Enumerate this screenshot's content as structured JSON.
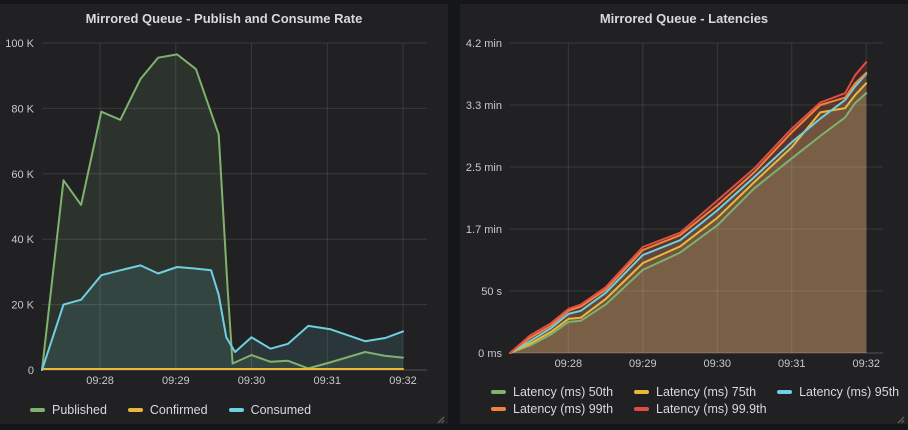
{
  "colors": {
    "page_bg": "#151619",
    "panel_bg": "#212124",
    "grid": "rgba(255,255,255,0.11)",
    "axis_line": "rgba(255,255,255,0.22)",
    "tick_text": "#c8c9ca",
    "title_text": "#d8d9da",
    "legend_text": "#d8d9da",
    "grip": "#5a5a5a"
  },
  "chart_data": [
    {
      "type": "area",
      "title": "Mirrored Queue - Publish and Consume Rate",
      "x_axis_unit": "time (hh:mm), seconds after 09:27:00",
      "y_axis_unit": "messages per second (K)",
      "xlim": [
        14,
        319
      ],
      "ylim": [
        0,
        105
      ],
      "grid": true,
      "legend_position": "bottom",
      "x_ticks": [
        {
          "t": 60,
          "label": "09:28"
        },
        {
          "t": 120,
          "label": "09:29"
        },
        {
          "t": 180,
          "label": "09:30"
        },
        {
          "t": 240,
          "label": "09:31"
        },
        {
          "t": 300,
          "label": "09:32"
        }
      ],
      "y_ticks": [
        {
          "v": 0,
          "label": "0"
        },
        {
          "v": 20,
          "label": "20 K"
        },
        {
          "v": 40,
          "label": "40 K"
        },
        {
          "v": 60,
          "label": "60 K"
        },
        {
          "v": 80,
          "label": "80 K"
        },
        {
          "v": 100,
          "label": "100 K"
        }
      ],
      "series": [
        {
          "name": "Published",
          "color": "#7EB26D",
          "fill_opacity": 0.12,
          "line_width": 2,
          "points": [
            [
              14,
              0
            ],
            [
              31,
              58
            ],
            [
              45,
              50.5
            ],
            [
              61,
              79
            ],
            [
              76,
              76.5
            ],
            [
              92,
              89
            ],
            [
              106,
              95.5
            ],
            [
              121,
              96.5
            ],
            [
              136,
              92
            ],
            [
              154,
              72
            ],
            [
              161,
              25
            ],
            [
              165,
              2
            ],
            [
              180,
              4.6
            ],
            [
              195,
              2.5
            ],
            [
              209,
              2.8
            ],
            [
              225,
              0.5
            ],
            [
              242,
              2.3
            ],
            [
              270,
              5.5
            ],
            [
              286,
              4.3
            ],
            [
              300,
              3.8
            ]
          ]
        },
        {
          "name": "Confirmed",
          "color": "#EAB839",
          "fill_opacity": 0.12,
          "line_width": 2,
          "points": [
            [
              14,
              0.3
            ],
            [
              300,
              0.3
            ]
          ]
        },
        {
          "name": "Consumed",
          "color": "#6ED0E0",
          "fill_opacity": 0.12,
          "line_width": 2,
          "points": [
            [
              14,
              0
            ],
            [
              31,
              20
            ],
            [
              45,
              21.5
            ],
            [
              61,
              29
            ],
            [
              76,
              30.5
            ],
            [
              92,
              32
            ],
            [
              106,
              29.5
            ],
            [
              121,
              31.5
            ],
            [
              136,
              31
            ],
            [
              148,
              30.5
            ],
            [
              154,
              23
            ],
            [
              160,
              10
            ],
            [
              167,
              5.5
            ],
            [
              180,
              10
            ],
            [
              195,
              6.5
            ],
            [
              209,
              8
            ],
            [
              225,
              13.5
            ],
            [
              242,
              12.5
            ],
            [
              270,
              8.8
            ],
            [
              286,
              9.8
            ],
            [
              300,
              11.8
            ]
          ]
        }
      ],
      "legend_rows": [
        [
          "Published",
          "Confirmed",
          "Consumed"
        ]
      ]
    },
    {
      "type": "area",
      "title": "Mirrored Queue - Latencies",
      "x_axis_unit": "time (hh:mm), seconds after 09:27:00",
      "y_axis_unit": "latency (seconds)",
      "xlim": [
        13,
        313.5
      ],
      "ylim": [
        0,
        260
      ],
      "grid": true,
      "legend_position": "bottom",
      "x_ticks": [
        {
          "t": 60,
          "label": "09:28"
        },
        {
          "t": 120,
          "label": "09:29"
        },
        {
          "t": 180,
          "label": "09:30"
        },
        {
          "t": 240,
          "label": "09:31"
        },
        {
          "t": 300,
          "label": "09:32"
        }
      ],
      "y_ticks": [
        {
          "v": 0,
          "label": "0 ms"
        },
        {
          "v": 50,
          "label": "50 s"
        },
        {
          "v": 100,
          "label": "1.7 min"
        },
        {
          "v": 150,
          "label": "2.5 min"
        },
        {
          "v": 200,
          "label": "3.3 min"
        },
        {
          "v": 250,
          "label": "4.2 min"
        }
      ],
      "series": [
        {
          "name": "Latency (ms) 50th",
          "color": "#7EB26D",
          "fill_opacity": 0.15,
          "line_width": 2,
          "points": [
            [
              13,
              0
            ],
            [
              29,
              6
            ],
            [
              46,
              15
            ],
            [
              60,
              25
            ],
            [
              70,
              26
            ],
            [
              90,
              39
            ],
            [
              120,
              67
            ],
            [
              150,
              81
            ],
            [
              180,
              103
            ],
            [
              210,
              133
            ],
            [
              240,
              157
            ],
            [
              263,
              175
            ],
            [
              283,
              190
            ],
            [
              291,
              201.5
            ],
            [
              300,
              209.5
            ]
          ]
        },
        {
          "name": "Latency (ms) 75th",
          "color": "#EAB839",
          "fill_opacity": 0.15,
          "line_width": 2,
          "points": [
            [
              13,
              0
            ],
            [
              29,
              7.5
            ],
            [
              46,
              17
            ],
            [
              60,
              27.5
            ],
            [
              70,
              28.5
            ],
            [
              90,
              43.5
            ],
            [
              120,
              72.5
            ],
            [
              150,
              86
            ],
            [
              180,
              109
            ],
            [
              210,
              138
            ],
            [
              240,
              166
            ],
            [
              263,
              194
            ],
            [
              283,
              197.5
            ],
            [
              291,
              208
            ],
            [
              300,
              217.5
            ]
          ]
        },
        {
          "name": "Latency (ms) 95th",
          "color": "#6ED0E0",
          "fill_opacity": 0.15,
          "line_width": 2,
          "points": [
            [
              13,
              0
            ],
            [
              29,
              9.5
            ],
            [
              46,
              20
            ],
            [
              60,
              31.5
            ],
            [
              70,
              34
            ],
            [
              90,
              48.5
            ],
            [
              120,
              79
            ],
            [
              150,
              91
            ],
            [
              180,
              115
            ],
            [
              210,
              142
            ],
            [
              240,
              170
            ],
            [
              263,
              189
            ],
            [
              283,
              204
            ],
            [
              291,
              215
            ],
            [
              300,
              225
            ]
          ]
        },
        {
          "name": "Latency (ms) 99th",
          "color": "#EF843C",
          "fill_opacity": 0.15,
          "line_width": 2,
          "points": [
            [
              13,
              0
            ],
            [
              29,
              12
            ],
            [
              46,
              22
            ],
            [
              60,
              34
            ],
            [
              70,
              37.5
            ],
            [
              90,
              51
            ],
            [
              120,
              83
            ],
            [
              150,
              95
            ],
            [
              180,
              119
            ],
            [
              210,
              146
            ],
            [
              240,
              178
            ],
            [
              263,
              200
            ],
            [
              283,
              206
            ],
            [
              291,
              217.5
            ],
            [
              300,
              226
            ]
          ]
        },
        {
          "name": "Latency (ms) 99.9th",
          "color": "#E24D42",
          "fill_opacity": 0.15,
          "line_width": 2,
          "points": [
            [
              13,
              0
            ],
            [
              29,
              14
            ],
            [
              46,
              24
            ],
            [
              60,
              35.5
            ],
            [
              70,
              39
            ],
            [
              90,
              53
            ],
            [
              120,
              85.5
            ],
            [
              150,
              97
            ],
            [
              180,
              123
            ],
            [
              210,
              149
            ],
            [
              240,
              181
            ],
            [
              263,
              202
            ],
            [
              283,
              209.5
            ],
            [
              291,
              224
            ],
            [
              300,
              234.5
            ]
          ]
        }
      ],
      "legend_rows": [
        [
          "Latency (ms) 50th",
          "Latency (ms) 75th",
          "Latency (ms) 95th"
        ],
        [
          "Latency (ms) 99th",
          "Latency (ms) 99.9th"
        ]
      ]
    }
  ]
}
